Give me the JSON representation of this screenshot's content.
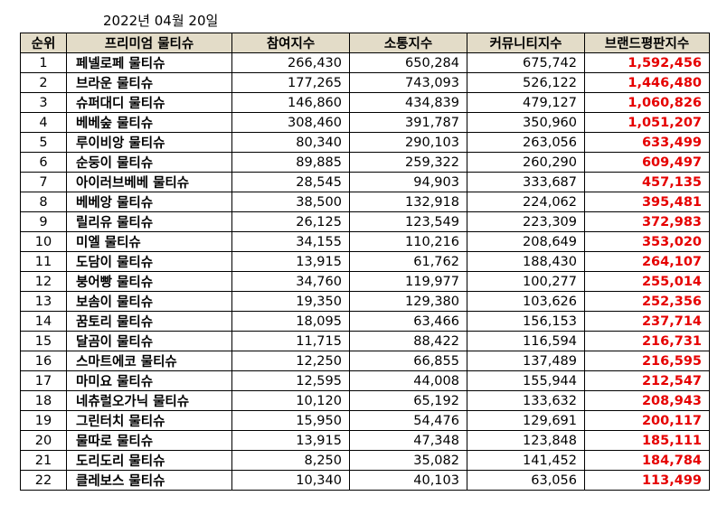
{
  "date": "2022년 04월 20일",
  "headers": [
    "순위",
    "프리미엄 물티슈",
    "참여지수",
    "소통지수",
    "커뮤니티지수",
    "브랜드평판지수"
  ],
  "rows": [
    [
      "1",
      "페넬로페 물티슈",
      "266,430",
      "650,284",
      "675,742",
      "1,592,456"
    ],
    [
      "2",
      "브라운 물티슈",
      "177,265",
      "743,093",
      "526,122",
      "1,446,480"
    ],
    [
      "3",
      "슈퍼대디 물티슈",
      "146,860",
      "434,839",
      "479,127",
      "1,060,826"
    ],
    [
      "4",
      "베베숲 물티슈",
      "308,460",
      "391,787",
      "350,960",
      "1,051,207"
    ],
    [
      "5",
      "루이비앙 물티슈",
      "80,340",
      "290,103",
      "263,056",
      "633,499"
    ],
    [
      "6",
      "순둥이 물티슈",
      "89,885",
      "259,322",
      "260,290",
      "609,497"
    ],
    [
      "7",
      "아이러브베베 물티슈",
      "28,545",
      "94,903",
      "333,687",
      "457,135"
    ],
    [
      "8",
      "베베앙 물티슈",
      "38,500",
      "132,918",
      "224,062",
      "395,481"
    ],
    [
      "9",
      "릴리유 물티슈",
      "26,125",
      "123,549",
      "223,309",
      "372,983"
    ],
    [
      "10",
      "미엘 물티슈",
      "34,155",
      "110,216",
      "208,649",
      "353,020"
    ],
    [
      "11",
      "도담이 물티슈",
      "13,915",
      "61,762",
      "188,430",
      "264,107"
    ],
    [
      "12",
      "붕어빵 물티슈",
      "34,760",
      "119,977",
      "100,277",
      "255,014"
    ],
    [
      "13",
      "보솜이 물티슈",
      "19,350",
      "129,380",
      "103,626",
      "252,356"
    ],
    [
      "14",
      "꿈토리 물티슈",
      "18,095",
      "63,466",
      "156,153",
      "237,714"
    ],
    [
      "15",
      "달곰이 물티슈",
      "11,715",
      "88,422",
      "116,594",
      "216,731"
    ],
    [
      "16",
      "스마트에코 물티슈",
      "12,250",
      "66,855",
      "137,489",
      "216,595"
    ],
    [
      "17",
      "마미요 물티슈",
      "12,595",
      "44,008",
      "155,944",
      "212,547"
    ],
    [
      "18",
      "네츄럴오가닉 물티슈",
      "10,120",
      "65,192",
      "133,632",
      "208,943"
    ],
    [
      "19",
      "그린터치 물티슈",
      "15,950",
      "54,476",
      "129,691",
      "200,117"
    ],
    [
      "20",
      "물따로 물티슈",
      "13,915",
      "47,348",
      "123,848",
      "185,111"
    ],
    [
      "21",
      "도리도리 물티슈",
      "8,250",
      "35,082",
      "141,452",
      "184,784"
    ],
    [
      "22",
      "클레보스 물티슈",
      "10,340",
      "40,103",
      "63,056",
      "113,499"
    ]
  ]
}
